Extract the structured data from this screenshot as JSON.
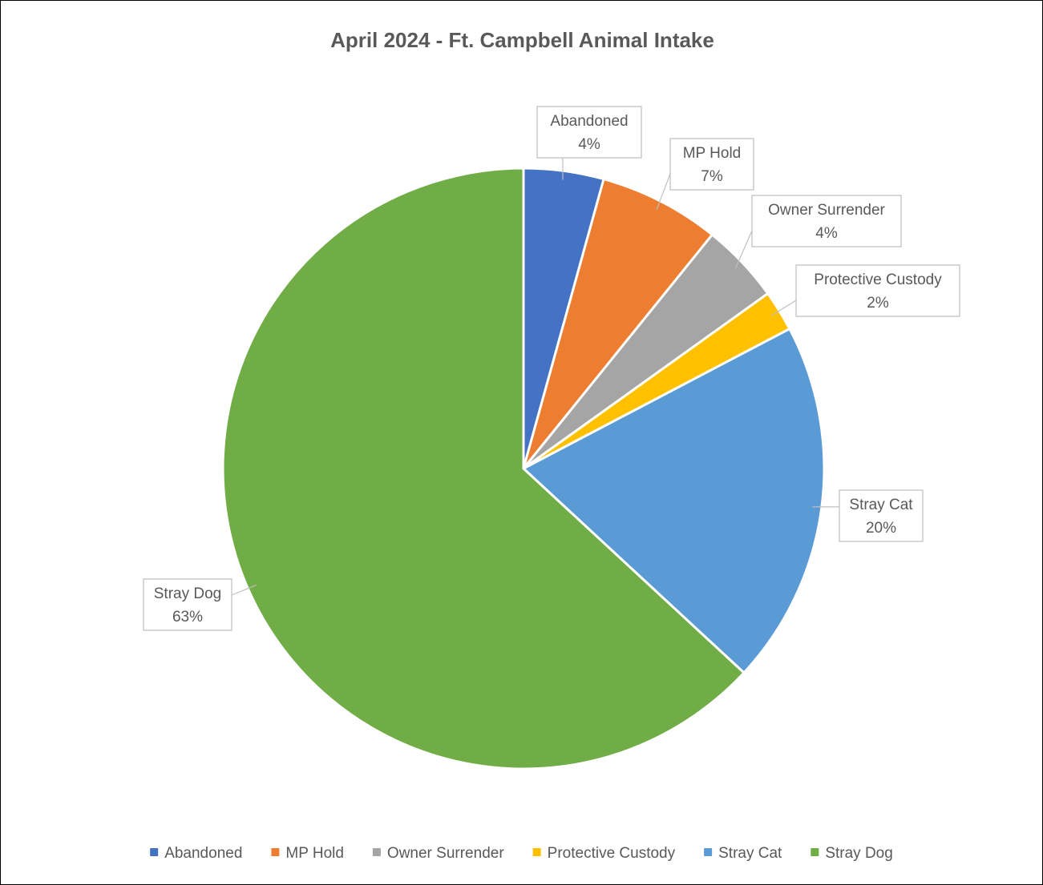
{
  "chart_data": {
    "type": "pie",
    "title": "April 2024 - Ft. Campbell Animal Intake",
    "legend_placement": "bottom",
    "slices": [
      {
        "label": "Abandoned",
        "percent_label": "4%",
        "value": 4.3,
        "color": "#4472C4"
      },
      {
        "label": "MP Hold",
        "percent_label": "7%",
        "value": 6.5,
        "color": "#ED7D31"
      },
      {
        "label": "Owner Surrender",
        "percent_label": "4%",
        "value": 4.3,
        "color": "#A5A5A5"
      },
      {
        "label": "Protective Custody",
        "percent_label": "2%",
        "value": 2.2,
        "color": "#FFC000"
      },
      {
        "label": "Stray Cat",
        "percent_label": "20%",
        "value": 19.6,
        "color": "#5B9BD5"
      },
      {
        "label": "Stray Dog",
        "percent_label": "63%",
        "value": 63.1,
        "color": "#70AD47"
      }
    ]
  }
}
